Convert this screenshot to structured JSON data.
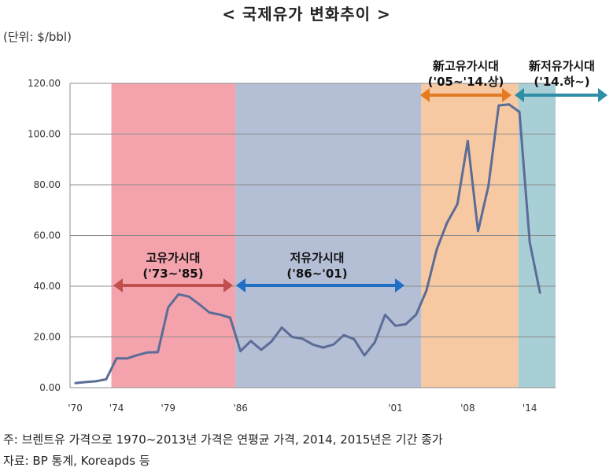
{
  "header": {
    "title": "< 국제유가 변화추이 >",
    "unit": "(단위: $/bbl)"
  },
  "footer": {
    "note": "주: 브렌트유 가격으로 1970~2013년 가격은 연평균 가격, 2014, 2015년은 기간 종가",
    "source": "자료: BP 통계, Koreapds 등"
  },
  "chart_data": {
    "type": "line",
    "title": "< 국제유가 변화추이 >",
    "ylabel": "(단위: $/bbl)",
    "ylim": [
      0,
      120
    ],
    "yticks": [
      "0.00",
      "20.00",
      "40.00",
      "60.00",
      "80.00",
      "100.00",
      "120.00"
    ],
    "xlim": [
      1969.5,
      2016.5
    ],
    "xticks": [
      {
        "x": 1970,
        "label": "'70"
      },
      {
        "x": 1974,
        "label": "'74"
      },
      {
        "x": 1979,
        "label": "'79"
      },
      {
        "x": 1986,
        "label": "'86"
      },
      {
        "x": 2001,
        "label": "'01"
      },
      {
        "x": 2008,
        "label": "'08"
      },
      {
        "x": 2014,
        "label": "'14"
      }
    ],
    "grid": true,
    "series": [
      {
        "color": "#5b6c97",
        "x": [
          1970,
          1971,
          1972,
          1973,
          1974,
          1975,
          1976,
          1977,
          1978,
          1979,
          1980,
          1981,
          1982,
          1983,
          1984,
          1985,
          1986,
          1987,
          1988,
          1989,
          1990,
          1991,
          1992,
          1993,
          1994,
          1995,
          1996,
          1997,
          1998,
          1999,
          2000,
          2001,
          2002,
          2003,
          2004,
          2005,
          2006,
          2007,
          2008,
          2009,
          2010,
          2011,
          2012,
          2013,
          2014,
          2015
        ],
        "values": [
          1.8,
          2.2,
          2.5,
          3.3,
          11.6,
          11.5,
          12.8,
          13.9,
          14.0,
          31.6,
          36.8,
          35.9,
          32.9,
          29.6,
          28.8,
          27.6,
          14.4,
          18.4,
          14.9,
          18.2,
          23.7,
          20.0,
          19.3,
          17.0,
          15.8,
          17.0,
          20.7,
          19.1,
          12.7,
          17.9,
          28.7,
          24.4,
          25.0,
          28.8,
          38.3,
          54.5,
          65.1,
          72.4,
          97.3,
          61.7,
          79.5,
          111.3,
          111.7,
          108.7,
          57.3,
          37.3
        ]
      }
    ],
    "eras": [
      {
        "label": "고유가시대",
        "range_label": "('73~'85)",
        "from": 1973.5,
        "to": 1985.5,
        "fill": "#f4a3ad",
        "arrow_color": "#c0504d"
      },
      {
        "label": "저유가시대",
        "range_label": "('86~'01)",
        "from": 1985.5,
        "to": 2003.5,
        "fill": "#b4bfd6",
        "arrow_color": "#1f6fc4"
      },
      {
        "label": "新고유가시대",
        "range_label": "('05~'14.상)",
        "from": 2003.5,
        "to": 2012.9,
        "fill": "#f7c9a3",
        "arrow_color": "#e47b23"
      },
      {
        "label": "新저유가시대",
        "range_label": "('14.하~)",
        "from": 2012.9,
        "to": 2017.3,
        "fill": "#a8ced6",
        "arrow_color": "#2f8ea5"
      }
    ]
  }
}
